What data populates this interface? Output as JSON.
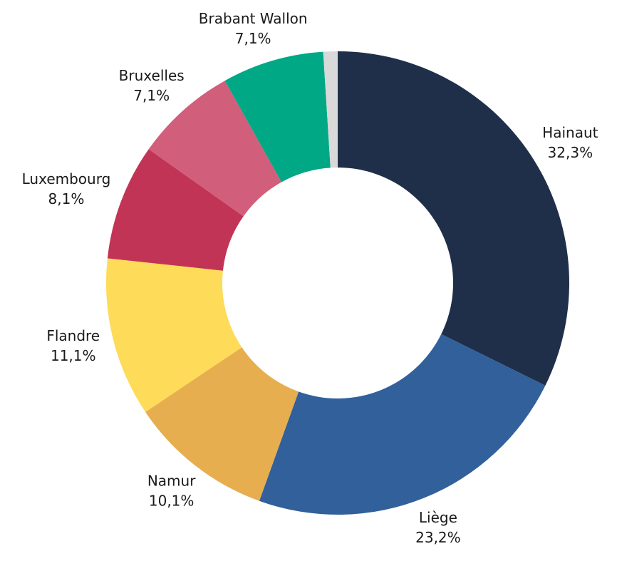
{
  "chart_data": {
    "type": "donut",
    "categories": [
      "Hainaut",
      "Liège",
      "Namur",
      "Flandre",
      "Luxembourg",
      "Bruxelles",
      "Brabant Wallon",
      null
    ],
    "values": [
      32.3,
      23.2,
      10.1,
      11.1,
      8.1,
      7.1,
      7.1,
      1.0
    ],
    "value_labels": [
      "32,3%",
      "23,2%",
      "10,1%",
      "11,1%",
      "8,1%",
      "7,1%",
      "7,1%",
      null
    ],
    "colors": [
      "#1f2f4a",
      "#31609b",
      "#e6ae4e",
      "#fedb58",
      "#c23455",
      "#d15e7a",
      "#00a886",
      "#d9d9d9"
    ]
  }
}
